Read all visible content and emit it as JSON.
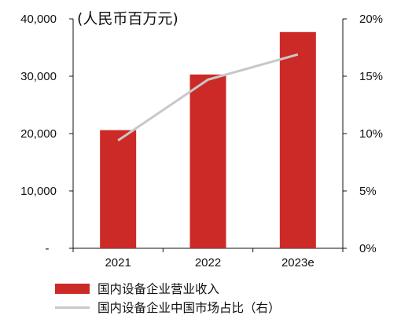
{
  "chart_data": {
    "type": "bar",
    "unit_label": "(人民币百万元)",
    "categories": [
      "2021",
      "2022",
      "2023e"
    ],
    "series": [
      {
        "name": "国内设备企业营业收入",
        "type": "bar",
        "axis": "left",
        "color": "#cc2a27",
        "values": [
          20600,
          30300,
          37700
        ]
      },
      {
        "name": "国内设备企业中国市场占比（右）",
        "type": "line",
        "axis": "right",
        "color": "#c8c8c8",
        "values": [
          9.4,
          14.7,
          16.9
        ]
      }
    ],
    "left_axis": {
      "ylim": [
        0,
        40000
      ],
      "ticks": [
        "-",
        "10,000",
        "20,000",
        "30,000",
        "40,000"
      ]
    },
    "right_axis": {
      "ylim": [
        0,
        20
      ],
      "ticks": [
        "0%",
        "5%",
        "10%",
        "15%",
        "20%"
      ]
    },
    "grid": false,
    "legend_position": "bottom"
  }
}
